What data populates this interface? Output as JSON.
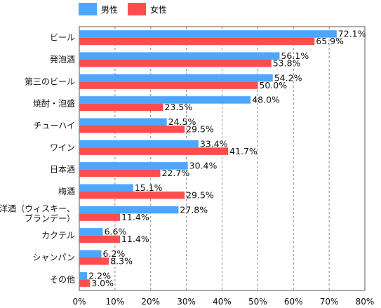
{
  "chart_data": {
    "type": "bar",
    "orientation": "horizontal",
    "categories": [
      [
        "ビール"
      ],
      [
        "発泡酒"
      ],
      [
        "第三のビール"
      ],
      [
        "焼酎・泡盛"
      ],
      [
        "チューハイ"
      ],
      [
        "ワイン"
      ],
      [
        "日本酒"
      ],
      [
        "梅酒"
      ],
      [
        "洋酒（ウィスキー、",
        "ブランデー）"
      ],
      [
        "カクテル"
      ],
      [
        "シャンパン"
      ],
      [
        "その他"
      ]
    ],
    "series": [
      {
        "name": "男性",
        "color": "#4da6ff",
        "values": [
          72.1,
          56.1,
          54.2,
          48.0,
          24.5,
          33.4,
          30.4,
          15.1,
          27.8,
          6.6,
          6.2,
          2.2
        ],
        "labels": [
          "72.1%",
          "56.1%",
          "54.2%",
          "48.0%",
          "24.5%",
          "33.4%",
          "30.4%",
          "15.1%",
          "27.8%",
          "6.6%",
          "6.2%",
          "2.2%"
        ]
      },
      {
        "name": "女性",
        "color": "#ff4d4d",
        "values": [
          65.9,
          53.8,
          50.0,
          23.5,
          29.5,
          41.7,
          22.7,
          29.5,
          11.4,
          11.4,
          8.3,
          3.0
        ],
        "labels": [
          "65.9%",
          "53.8%",
          "50.0%",
          "23.5%",
          "29.5%",
          "41.7%",
          "22.7%",
          "29.5%",
          "11.4%",
          "11.4%",
          "8.3%",
          "3.0%"
        ]
      }
    ],
    "xlim": [
      0,
      80
    ],
    "xticks": [
      "0%",
      "10%",
      "20%",
      "30%",
      "40%",
      "50%",
      "60%",
      "70%",
      "80%"
    ],
    "grid": true,
    "legend_position": "top-left"
  }
}
